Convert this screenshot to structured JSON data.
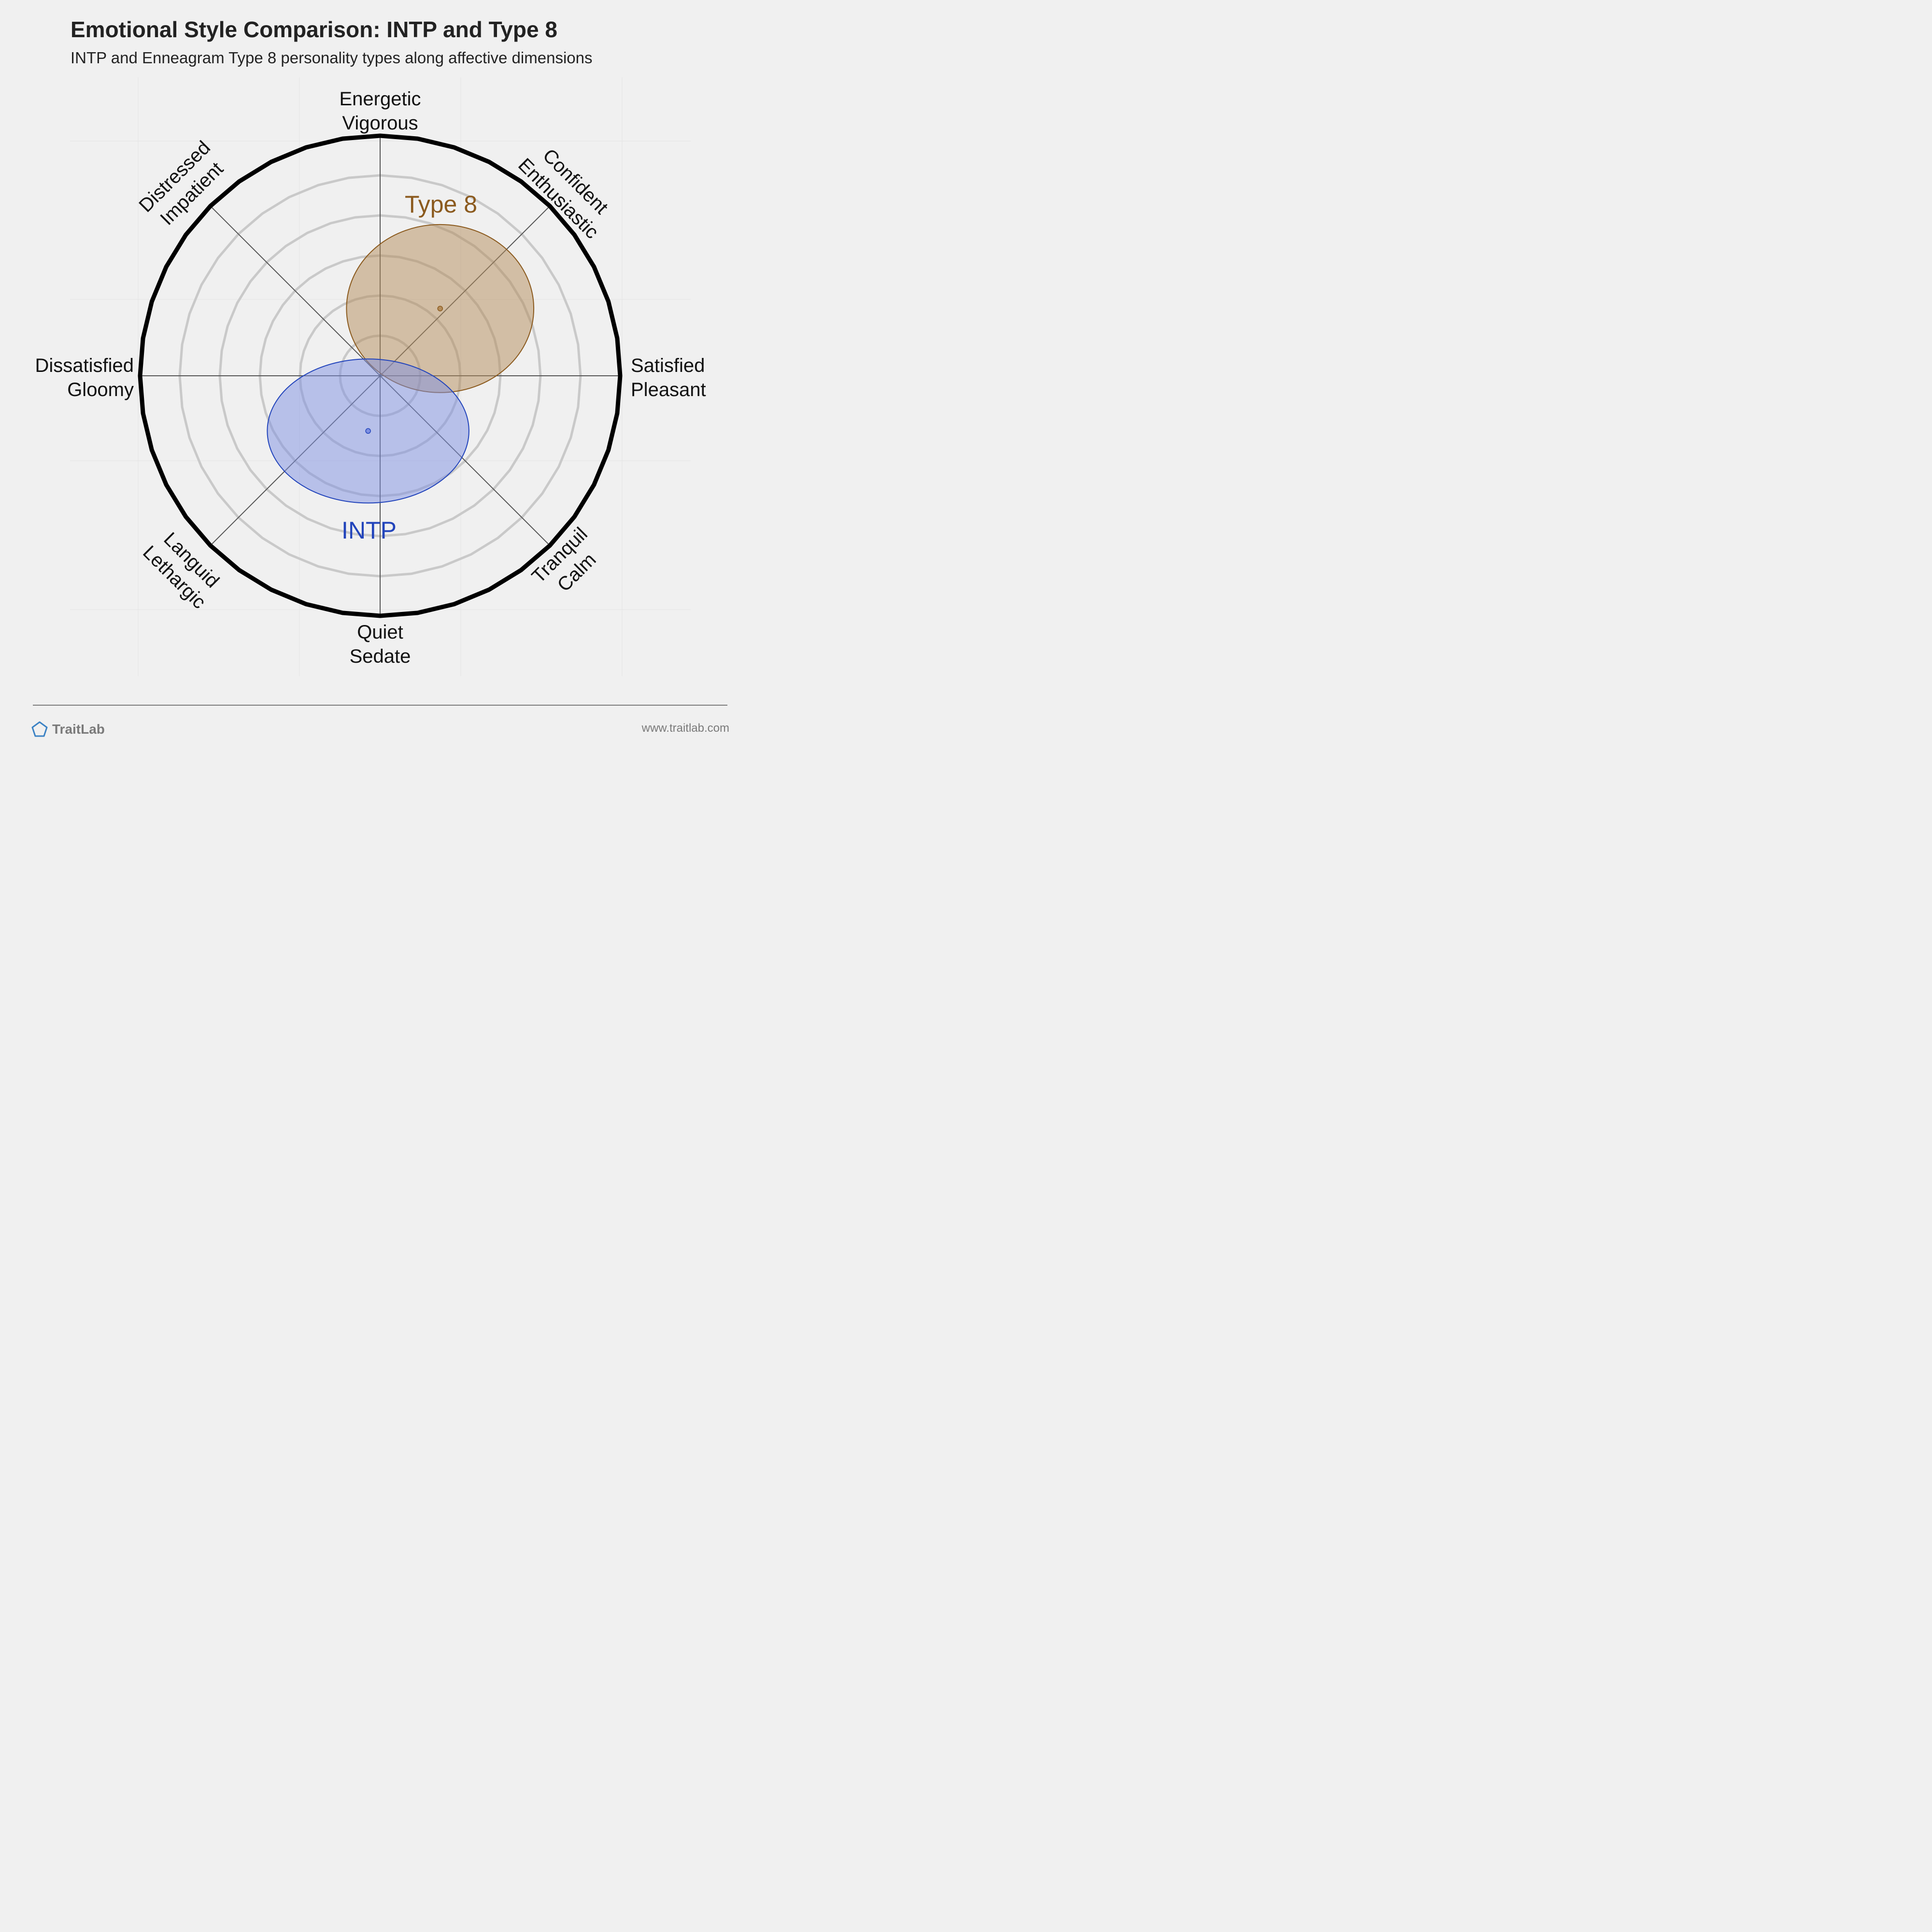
{
  "chart_data": {
    "type": "scatter",
    "title": "Emotional Style Comparison: INTP and Type 8",
    "subtitle": "INTP and Enneagram Type 8 personality types along affective dimensions",
    "axis_labels": [
      {
        "id": "top",
        "lines": [
          "Energetic",
          "Vigorous"
        ]
      },
      {
        "id": "top-right",
        "lines": [
          "Confident",
          "Enthusiastic"
        ]
      },
      {
        "id": "right",
        "lines": [
          "Satisfied",
          "Pleasant"
        ]
      },
      {
        "id": "bottom-right",
        "lines": [
          "Tranquil",
          "Calm"
        ]
      },
      {
        "id": "bottom",
        "lines": [
          "Quiet",
          "Sedate"
        ]
      },
      {
        "id": "bottom-left",
        "lines": [
          "Languid",
          "Lethargic"
        ]
      },
      {
        "id": "left",
        "lines": [
          "Dissatisfied",
          "Gloomy"
        ]
      },
      {
        "id": "top-left",
        "lines": [
          "Distressed",
          "Impatient"
        ]
      }
    ],
    "xlim": [
      -1,
      1
    ],
    "ylim": [
      -1,
      1
    ],
    "grid": true,
    "series": [
      {
        "name": "Type 8",
        "color": "#8b5a1e",
        "fill": "#b48c5a",
        "x": 0.25,
        "y": 0.28,
        "rx": 0.39,
        "ry": 0.35
      },
      {
        "name": "INTP",
        "color": "#2244bb",
        "fill": "#7d8fe2",
        "x": -0.05,
        "y": -0.23,
        "rx": 0.42,
        "ry": 0.3
      }
    ]
  },
  "footer": {
    "brand": "TraitLab",
    "url": "www.traitlab.com"
  }
}
